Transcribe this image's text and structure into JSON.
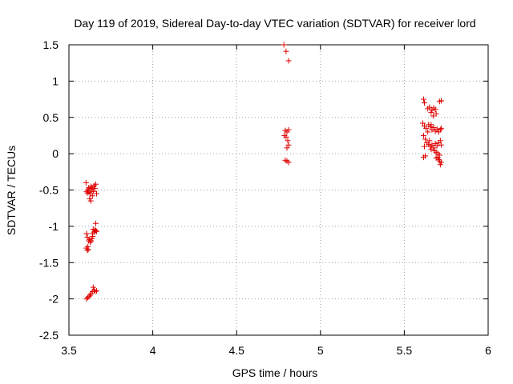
{
  "chart_data": {
    "type": "scatter",
    "title": "Day 119 of 2019, Sidereal Day-to-day VTEC variation (SDTVAR) for receiver lord",
    "xlabel": "GPS time / hours",
    "ylabel": "SDTVAR / TECUs",
    "xlim": [
      3.5,
      6
    ],
    "ylim": [
      -2.5,
      1.5
    ],
    "xticks": [
      3.5,
      4,
      4.5,
      5,
      5.5,
      6
    ],
    "xtick_labels": [
      "3.5",
      "4",
      "4.5",
      "5",
      "5.5",
      "6"
    ],
    "yticks": [
      -2.5,
      -2,
      -1.5,
      -1,
      -0.5,
      0,
      0.5,
      1,
      1.5
    ],
    "ytick_labels": [
      "-2.5",
      "-2",
      "-1.5",
      "-1",
      "-0.5",
      "0",
      "0.5",
      "1",
      "1.5"
    ],
    "grid": true,
    "marker": "+",
    "color": "#e00000",
    "series": [
      {
        "name": "SDTVAR",
        "points": [
          [
            3.602,
            -0.4
          ],
          [
            3.605,
            -0.52
          ],
          [
            3.61,
            -0.54
          ],
          [
            3.613,
            -0.5
          ],
          [
            3.618,
            -0.47
          ],
          [
            3.62,
            -0.53
          ],
          [
            3.625,
            -0.48
          ],
          [
            3.628,
            -0.55
          ],
          [
            3.632,
            -0.45
          ],
          [
            3.635,
            -0.5
          ],
          [
            3.64,
            -0.47
          ],
          [
            3.645,
            -0.52
          ],
          [
            3.65,
            -0.44
          ],
          [
            3.655,
            -0.48
          ],
          [
            3.66,
            -0.42
          ],
          [
            3.665,
            -0.55
          ],
          [
            3.624,
            -0.62
          ],
          [
            3.63,
            -0.65
          ],
          [
            3.64,
            -0.58
          ],
          [
            3.66,
            -0.96
          ],
          [
            3.645,
            -1.04
          ],
          [
            3.65,
            -1.08
          ],
          [
            3.655,
            -1.05
          ],
          [
            3.66,
            -1.06
          ],
          [
            3.665,
            -1.07
          ],
          [
            3.64,
            -1.1
          ],
          [
            3.642,
            -1.14
          ],
          [
            3.638,
            -1.17
          ],
          [
            3.632,
            -1.2
          ],
          [
            3.628,
            -1.22
          ],
          [
            3.622,
            -1.18
          ],
          [
            3.618,
            -1.2
          ],
          [
            3.605,
            -1.1
          ],
          [
            3.61,
            -1.15
          ],
          [
            3.604,
            -1.3
          ],
          [
            3.61,
            -1.33
          ],
          [
            3.615,
            -1.32
          ],
          [
            3.613,
            -1.28
          ],
          [
            3.645,
            -1.84
          ],
          [
            3.65,
            -1.88
          ],
          [
            3.655,
            -1.9
          ],
          [
            3.665,
            -1.89
          ],
          [
            3.64,
            -1.9
          ],
          [
            3.632,
            -1.93
          ],
          [
            3.626,
            -1.95
          ],
          [
            3.62,
            -1.97
          ],
          [
            3.612,
            -1.98
          ],
          [
            3.605,
            -2.0
          ],
          [
            4.782,
            1.5
          ],
          [
            4.795,
            1.41
          ],
          [
            4.81,
            1.28
          ],
          [
            4.79,
            0.32
          ],
          [
            4.8,
            0.3
          ],
          [
            4.81,
            0.33
          ],
          [
            4.785,
            0.25
          ],
          [
            4.795,
            0.23
          ],
          [
            4.805,
            0.18
          ],
          [
            4.81,
            0.12
          ],
          [
            4.8,
            0.08
          ],
          [
            4.79,
            -0.09
          ],
          [
            4.8,
            -0.1
          ],
          [
            4.81,
            -0.12
          ],
          [
            5.615,
            0.75
          ],
          [
            5.62,
            0.7
          ],
          [
            5.64,
            0.62
          ],
          [
            5.65,
            0.64
          ],
          [
            5.665,
            0.6
          ],
          [
            5.675,
            0.63
          ],
          [
            5.685,
            0.61
          ],
          [
            5.69,
            0.55
          ],
          [
            5.71,
            0.72
          ],
          [
            5.72,
            0.73
          ],
          [
            5.66,
            0.57
          ],
          [
            5.672,
            0.52
          ],
          [
            5.61,
            0.42
          ],
          [
            5.62,
            0.38
          ],
          [
            5.63,
            0.35
          ],
          [
            5.645,
            0.4
          ],
          [
            5.655,
            0.37
          ],
          [
            5.665,
            0.33
          ],
          [
            5.675,
            0.36
          ],
          [
            5.685,
            0.31
          ],
          [
            5.695,
            0.34
          ],
          [
            5.705,
            0.3
          ],
          [
            5.715,
            0.33
          ],
          [
            5.72,
            0.35
          ],
          [
            5.66,
            0.4
          ],
          [
            5.64,
            0.3
          ],
          [
            5.615,
            0.25
          ],
          [
            5.625,
            0.2
          ],
          [
            5.635,
            0.15
          ],
          [
            5.645,
            0.13
          ],
          [
            5.655,
            0.1
          ],
          [
            5.665,
            0.12
          ],
          [
            5.675,
            0.08
          ],
          [
            5.685,
            0.14
          ],
          [
            5.695,
            0.11
          ],
          [
            5.705,
            0.15
          ],
          [
            5.715,
            0.18
          ],
          [
            5.72,
            0.12
          ],
          [
            5.65,
            0.18
          ],
          [
            5.66,
            0.06
          ],
          [
            5.68,
            0.04
          ],
          [
            5.69,
            0.02
          ],
          [
            5.7,
            0.0
          ],
          [
            5.71,
            -0.02
          ],
          [
            5.62,
            0.1
          ],
          [
            5.615,
            -0.05
          ],
          [
            5.625,
            -0.03
          ],
          [
            5.69,
            -0.06
          ],
          [
            5.7,
            -0.05
          ],
          [
            5.71,
            -0.1
          ],
          [
            5.715,
            -0.15
          ],
          [
            5.72,
            -0.12
          ],
          [
            5.705,
            -0.08
          ]
        ]
      }
    ]
  }
}
